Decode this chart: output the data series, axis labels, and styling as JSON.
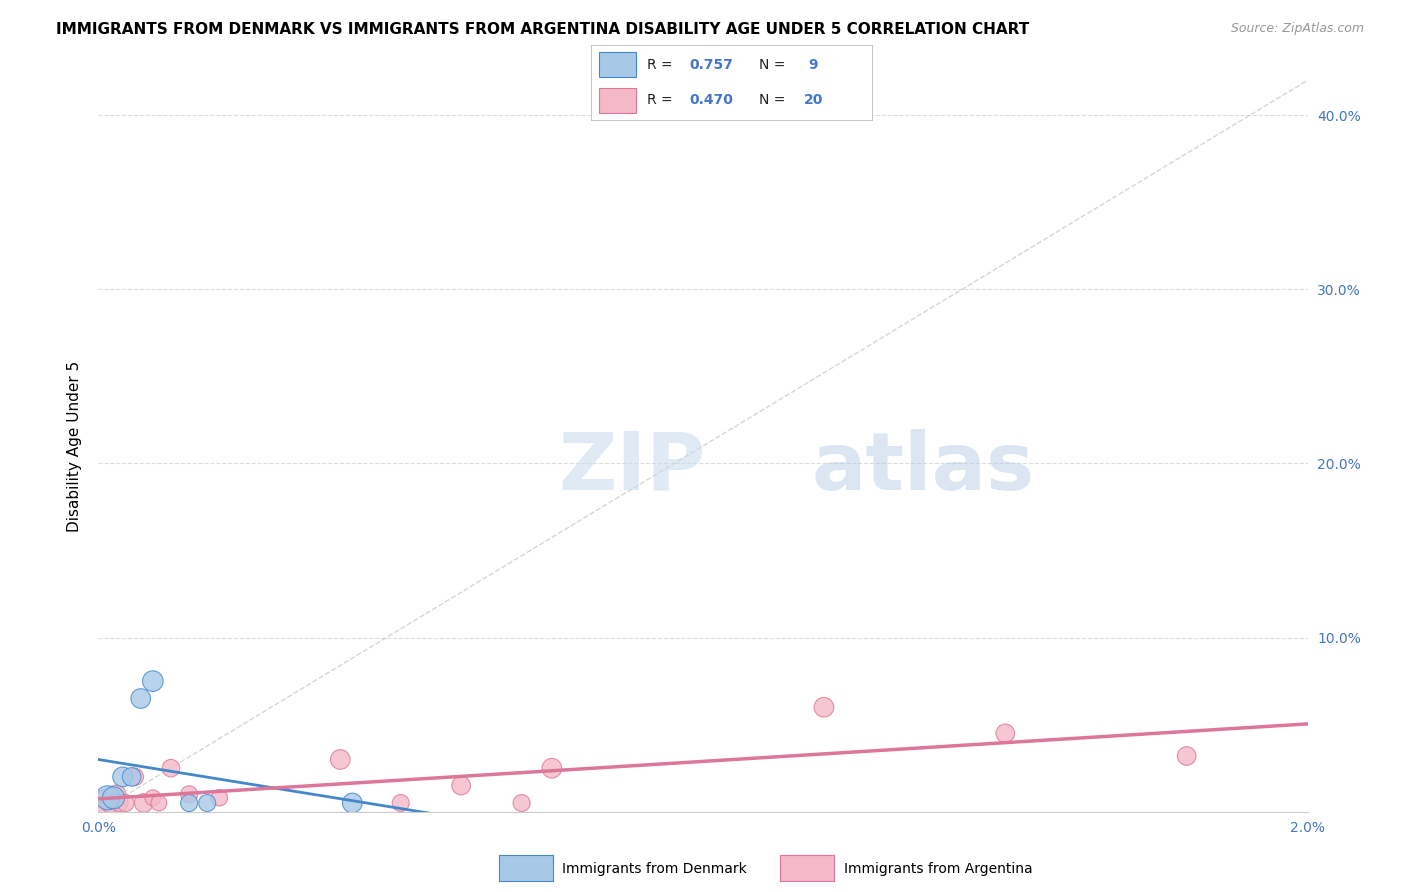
{
  "title": "IMMIGRANTS FROM DENMARK VS IMMIGRANTS FROM ARGENTINA DISABILITY AGE UNDER 5 CORRELATION CHART",
  "source": "Source: ZipAtlas.com",
  "ylabel": "Disability Age Under 5",
  "xlim": [
    0.0,
    0.02
  ],
  "ylim": [
    0.0,
    0.42
  ],
  "right_yticks": [
    0.0,
    0.1,
    0.2,
    0.3,
    0.4
  ],
  "right_yticklabels": [
    "",
    "10.0%",
    "20.0%",
    "30.0%",
    "40.0%"
  ],
  "xticks": [
    0.0,
    0.004,
    0.008,
    0.012,
    0.016,
    0.02
  ],
  "xticklabels": [
    "0.0%",
    "",
    "",
    "",
    "",
    "2.0%"
  ],
  "denmark_R": 0.757,
  "denmark_N": 9,
  "argentina_R": 0.47,
  "argentina_N": 20,
  "denmark_color": "#a8c8e8",
  "argentina_color": "#f4b8c8",
  "denmark_line_color": "#4488cc",
  "argentina_line_color": "#dd7799",
  "denmark_x": [
    0.00015,
    0.00025,
    0.0004,
    0.00055,
    0.0007,
    0.0009,
    0.0015,
    0.0018,
    0.0042
  ],
  "denmark_y": [
    0.008,
    0.008,
    0.02,
    0.02,
    0.065,
    0.075,
    0.005,
    0.005,
    0.005
  ],
  "denmark_size": [
    300,
    250,
    200,
    180,
    200,
    220,
    150,
    150,
    200
  ],
  "argentina_x": [
    0.0001,
    0.0002,
    0.0003,
    0.00035,
    0.00045,
    0.0006,
    0.00075,
    0.0009,
    0.001,
    0.0012,
    0.0015,
    0.002,
    0.004,
    0.005,
    0.006,
    0.007,
    0.0075,
    0.012,
    0.015,
    0.018
  ],
  "argentina_y": [
    0.005,
    0.005,
    0.01,
    0.005,
    0.005,
    0.02,
    0.005,
    0.008,
    0.005,
    0.025,
    0.01,
    0.008,
    0.03,
    0.005,
    0.015,
    0.005,
    0.025,
    0.06,
    0.045,
    0.032
  ],
  "argentina_size": [
    350,
    200,
    180,
    150,
    150,
    160,
    180,
    130,
    130,
    160,
    150,
    140,
    200,
    150,
    180,
    150,
    200,
    200,
    180,
    180
  ],
  "watermark_zip": "ZIP",
  "watermark_atlas": "atlas",
  "background_color": "#ffffff",
  "grid_color": "#dddddd",
  "diag_line_color": "#cccccc",
  "legend_denmark_label": "R = 0.757   N =  9",
  "legend_argentina_label": "R = 0.470   N = 20",
  "bottom_legend_denmark": "Immigrants from Denmark",
  "bottom_legend_argentina": "Immigrants from Argentina"
}
